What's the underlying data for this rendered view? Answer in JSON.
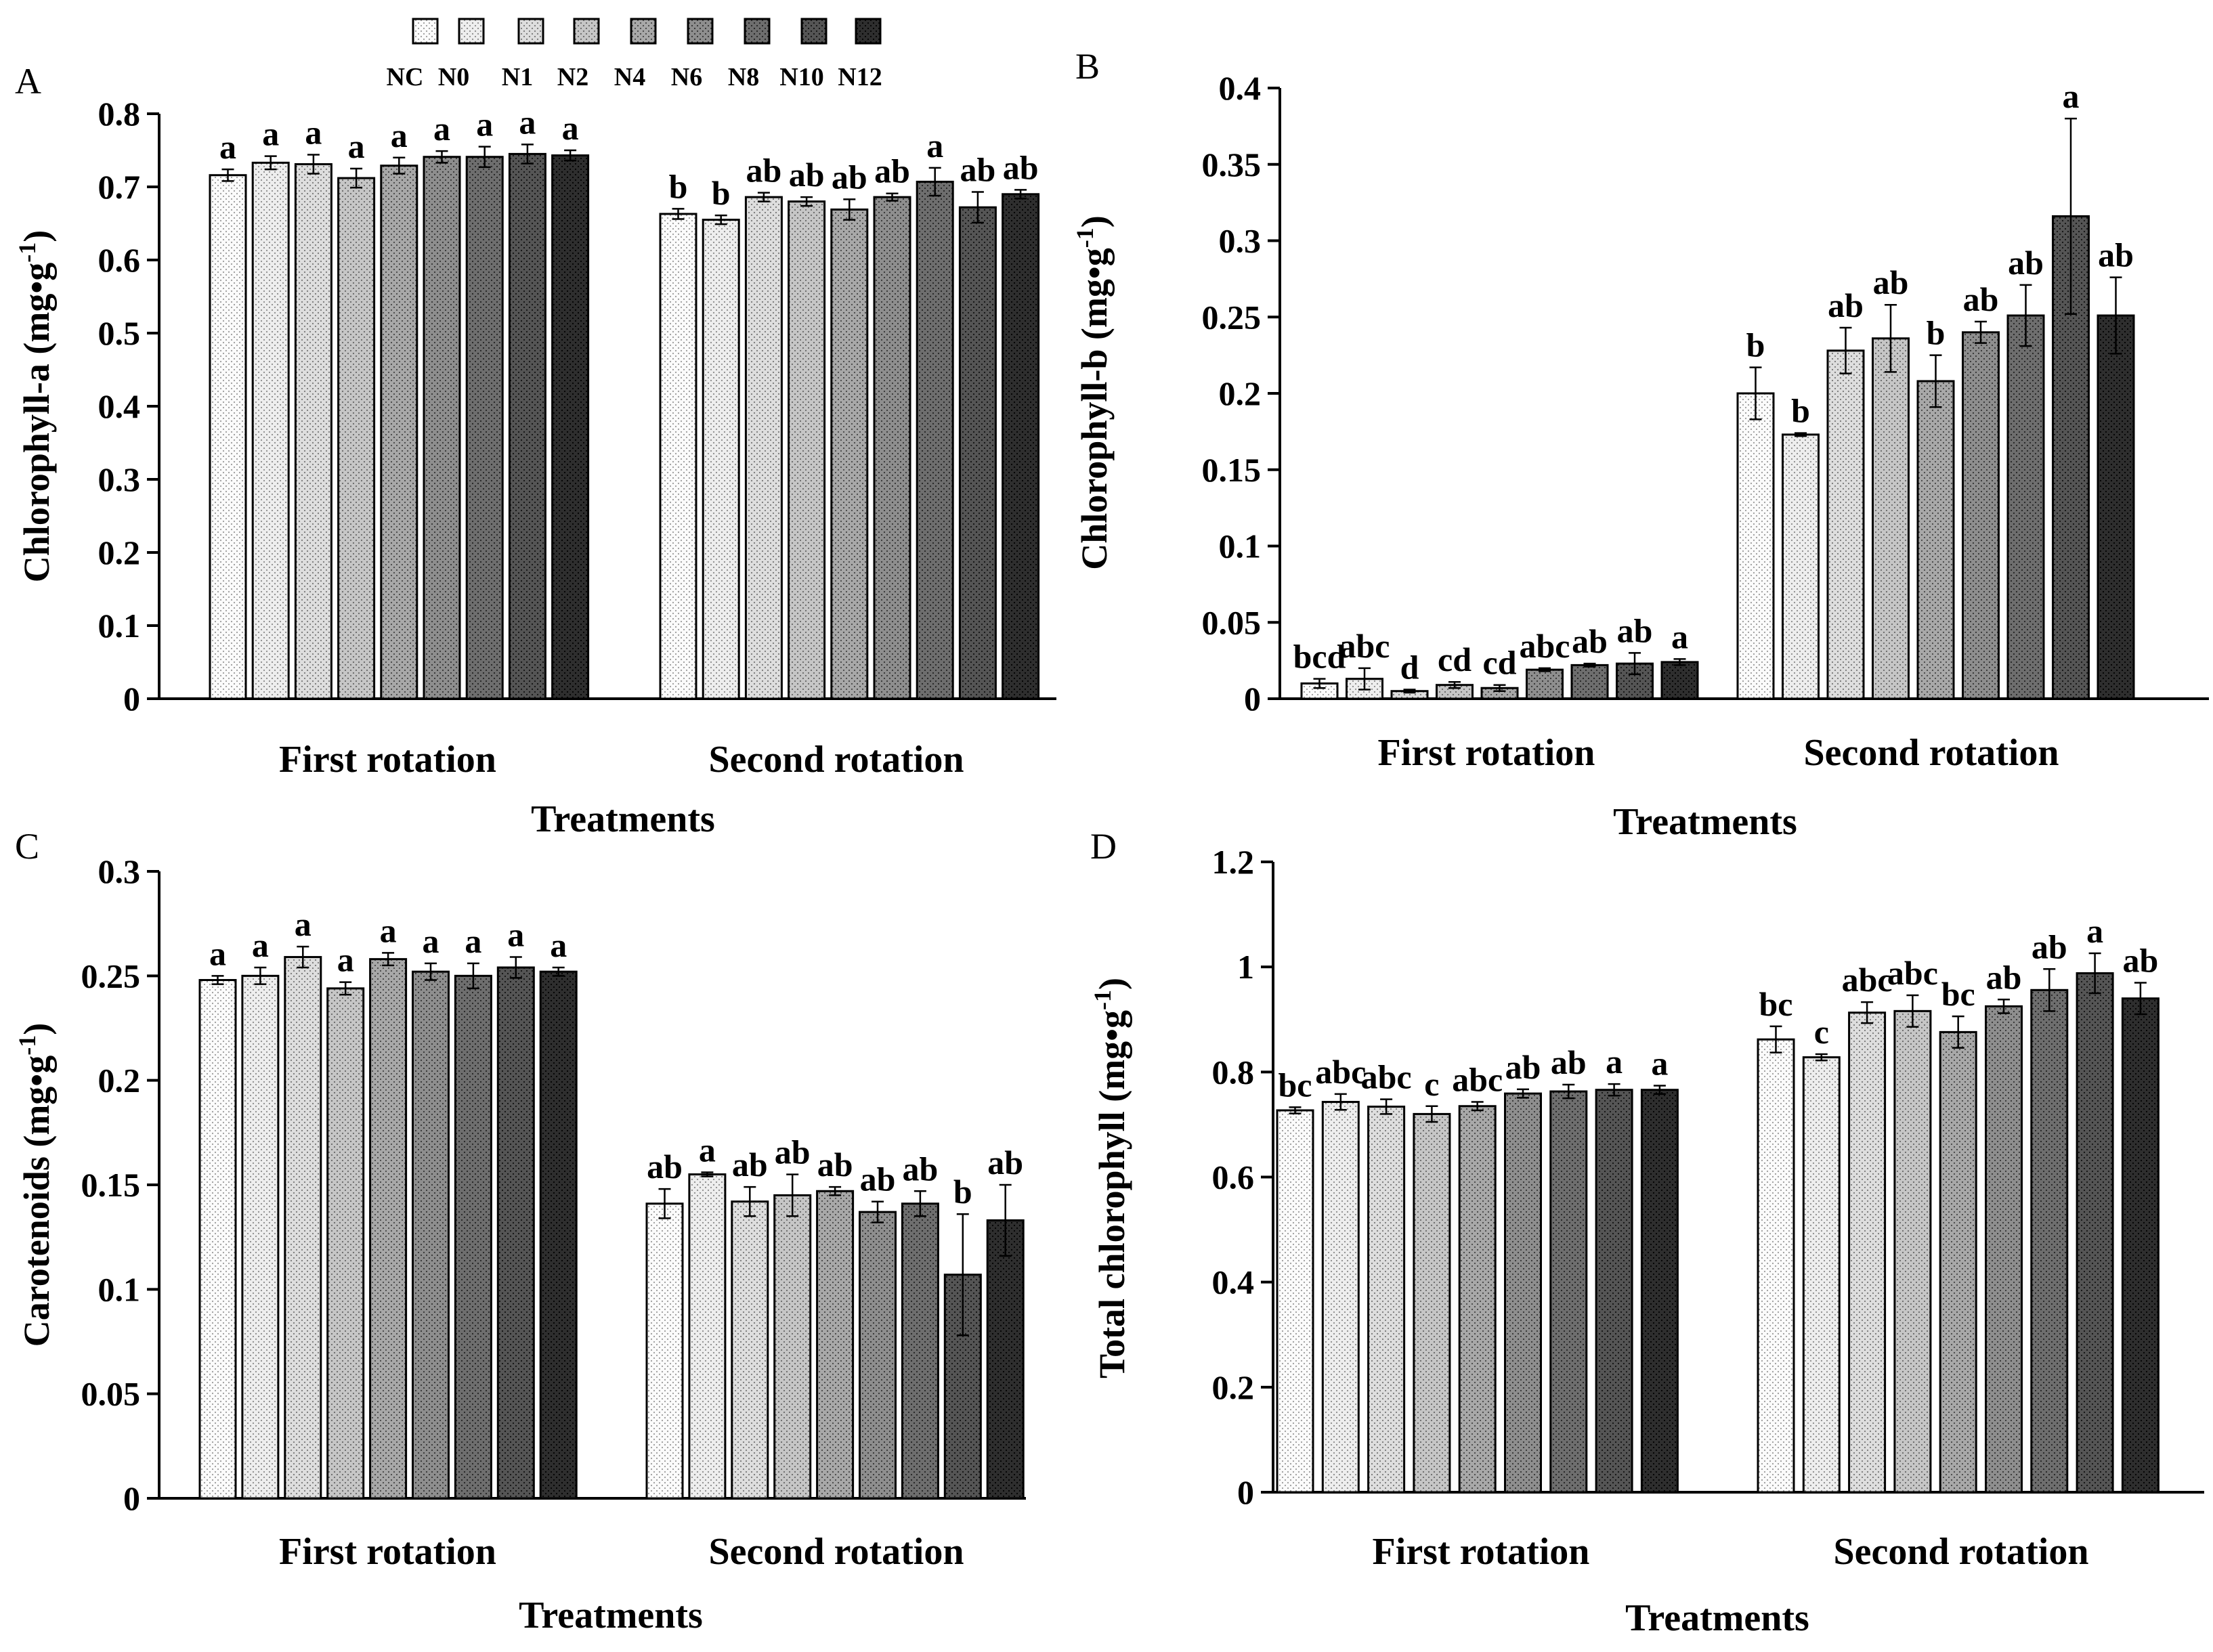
{
  "legend": {
    "treatments": [
      "NC",
      "N0",
      "N1",
      "N2",
      "N4",
      "N6",
      "N8",
      "N10",
      "N12"
    ],
    "colors": [
      "#fbfbfb",
      "#eeeeee",
      "#dedede",
      "#c6c6c6",
      "#a8a8a8",
      "#8e8e8e",
      "#6e6e6e",
      "#555555",
      "#2e2e2e"
    ]
  },
  "chart_data": [
    {
      "panel": "A",
      "type": "bar",
      "ylabel_main": "Chlorophyll-a (mg•g",
      "ylabel_sup": "-1",
      "ylabel_end": ")",
      "xlabel": "Treatments",
      "categories": [
        "First rotation",
        "Second rotation"
      ],
      "ylim": [
        0,
        0.8
      ],
      "yticks": [
        0,
        0.1,
        0.2,
        0.3,
        0.4,
        0.5,
        0.6,
        0.7,
        0.8
      ],
      "ytick_labels": [
        "0",
        "0.1",
        "0.2",
        "0.3",
        "0.4",
        "0.5",
        "0.6",
        "0.7",
        "0.8"
      ],
      "series": [
        {
          "name": "NC",
          "values": [
            0.716,
            0.663
          ],
          "errors": [
            0.008,
            0.007
          ],
          "letters": [
            "a",
            "b"
          ]
        },
        {
          "name": "N0",
          "values": [
            0.733,
            0.655
          ],
          "errors": [
            0.009,
            0.006
          ],
          "letters": [
            "a",
            "b"
          ]
        },
        {
          "name": "N1",
          "values": [
            0.731,
            0.686
          ],
          "errors": [
            0.013,
            0.006
          ],
          "letters": [
            "a",
            "ab"
          ]
        },
        {
          "name": "N2",
          "values": [
            0.712,
            0.68
          ],
          "errors": [
            0.013,
            0.006
          ],
          "letters": [
            "a",
            "ab"
          ]
        },
        {
          "name": "N4",
          "values": [
            0.729,
            0.669
          ],
          "errors": [
            0.011,
            0.014
          ],
          "letters": [
            "a",
            "ab"
          ]
        },
        {
          "name": "N6",
          "values": [
            0.741,
            0.686
          ],
          "errors": [
            0.008,
            0.005
          ],
          "letters": [
            "a",
            "ab"
          ]
        },
        {
          "name": "N8",
          "values": [
            0.741,
            0.707
          ],
          "errors": [
            0.014,
            0.019
          ],
          "letters": [
            "a",
            "a"
          ]
        },
        {
          "name": "N10",
          "values": [
            0.745,
            0.672
          ],
          "errors": [
            0.013,
            0.021
          ],
          "letters": [
            "a",
            "ab"
          ]
        },
        {
          "name": "N12",
          "values": [
            0.743,
            0.69
          ],
          "errors": [
            0.007,
            0.006
          ],
          "letters": [
            "a",
            "ab"
          ]
        }
      ]
    },
    {
      "panel": "B",
      "type": "bar",
      "ylabel_main": "Chlorophyll-b (mg•g",
      "ylabel_sup": "-1",
      "ylabel_end": ")",
      "xlabel": "Treatments",
      "categories": [
        "First rotation",
        "Second rotation"
      ],
      "ylim": [
        0,
        0.4
      ],
      "yticks": [
        0,
        0.05,
        0.1,
        0.15,
        0.2,
        0.25,
        0.3,
        0.35,
        0.4
      ],
      "ytick_labels": [
        "0",
        "0.05",
        "0.1",
        "0.15",
        "0.2",
        "0.25",
        "0.3",
        "0.35",
        "0.4"
      ],
      "series": [
        {
          "name": "NC",
          "values": [
            0.01,
            0.2
          ],
          "errors": [
            0.003,
            0.017
          ],
          "letters": [
            "bcd",
            "b"
          ]
        },
        {
          "name": "N0",
          "values": [
            0.013,
            0.173
          ],
          "errors": [
            0.007,
            0.001
          ],
          "letters": [
            "abc",
            "b"
          ]
        },
        {
          "name": "N1",
          "values": [
            0.005,
            0.228
          ],
          "errors": [
            0.001,
            0.015
          ],
          "letters": [
            "d",
            "ab"
          ]
        },
        {
          "name": "N2",
          "values": [
            0.009,
            0.236
          ],
          "errors": [
            0.002,
            0.022
          ],
          "letters": [
            "cd",
            "ab"
          ]
        },
        {
          "name": "N4",
          "values": [
            0.007,
            0.208
          ],
          "errors": [
            0.002,
            0.017
          ],
          "letters": [
            "cd",
            "b"
          ]
        },
        {
          "name": "N6",
          "values": [
            0.019,
            0.24
          ],
          "errors": [
            0.001,
            0.007
          ],
          "letters": [
            "abc",
            "ab"
          ]
        },
        {
          "name": "N8",
          "values": [
            0.022,
            0.251
          ],
          "errors": [
            0.001,
            0.02
          ],
          "letters": [
            "ab",
            "ab"
          ]
        },
        {
          "name": "N10",
          "values": [
            0.023,
            0.316
          ],
          "errors": [
            0.007,
            0.064
          ],
          "letters": [
            "ab",
            "a"
          ]
        },
        {
          "name": "N12",
          "values": [
            0.024,
            0.251
          ],
          "errors": [
            0.002,
            0.025
          ],
          "letters": [
            "a",
            "ab"
          ]
        }
      ]
    },
    {
      "panel": "C",
      "type": "bar",
      "ylabel_main": "Carotenoids (mg•g",
      "ylabel_sup": "-1",
      "ylabel_end": ")",
      "xlabel": "Treatments",
      "categories": [
        "First rotation",
        "Second rotation"
      ],
      "ylim": [
        0,
        0.3
      ],
      "yticks": [
        0,
        0.05,
        0.1,
        0.15,
        0.2,
        0.25,
        0.3
      ],
      "ytick_labels": [
        "0",
        "0.05",
        "0.1",
        "0.15",
        "0.2",
        "0.25",
        "0.3"
      ],
      "series": [
        {
          "name": "NC",
          "values": [
            0.248,
            0.141
          ],
          "errors": [
            0.002,
            0.007
          ],
          "letters": [
            "a",
            "ab"
          ]
        },
        {
          "name": "N0",
          "values": [
            0.25,
            0.155
          ],
          "errors": [
            0.004,
            0.001
          ],
          "letters": [
            "a",
            "a"
          ]
        },
        {
          "name": "N1",
          "values": [
            0.259,
            0.142
          ],
          "errors": [
            0.005,
            0.007
          ],
          "letters": [
            "a",
            "ab"
          ]
        },
        {
          "name": "N2",
          "values": [
            0.244,
            0.145
          ],
          "errors": [
            0.003,
            0.01
          ],
          "letters": [
            "a",
            "ab"
          ]
        },
        {
          "name": "N4",
          "values": [
            0.258,
            0.147
          ],
          "errors": [
            0.003,
            0.002
          ],
          "letters": [
            "a",
            "ab"
          ]
        },
        {
          "name": "N6",
          "values": [
            0.252,
            0.137
          ],
          "errors": [
            0.004,
            0.005
          ],
          "letters": [
            "a",
            "ab"
          ]
        },
        {
          "name": "N8",
          "values": [
            0.25,
            0.141
          ],
          "errors": [
            0.006,
            0.006
          ],
          "letters": [
            "a",
            "ab"
          ]
        },
        {
          "name": "N10",
          "values": [
            0.254,
            0.107
          ],
          "errors": [
            0.005,
            0.029
          ],
          "letters": [
            "a",
            "b"
          ]
        },
        {
          "name": "N12",
          "values": [
            0.252,
            0.133
          ],
          "errors": [
            0.002,
            0.017
          ],
          "letters": [
            "a",
            "ab"
          ]
        }
      ]
    },
    {
      "panel": "D",
      "type": "bar",
      "ylabel_main": "Total chlorophyll (mg•g",
      "ylabel_sup": "-1",
      "ylabel_end": ")",
      "xlabel": "Treatments",
      "categories": [
        "First rotation",
        "Second rotation"
      ],
      "ylim": [
        0,
        1.2
      ],
      "yticks": [
        0,
        0.2,
        0.4,
        0.6,
        0.8,
        1.0,
        1.2
      ],
      "ytick_labels": [
        "0",
        "0.2",
        "0.4",
        "0.6",
        "0.8",
        "1",
        "1.2"
      ],
      "series": [
        {
          "name": "NC",
          "values": [
            0.727,
            0.862
          ],
          "errors": [
            0.006,
            0.025
          ],
          "letters": [
            "bc",
            "bc"
          ]
        },
        {
          "name": "N0",
          "values": [
            0.743,
            0.828
          ],
          "errors": [
            0.015,
            0.006
          ],
          "letters": [
            "abc",
            "c"
          ]
        },
        {
          "name": "N1",
          "values": [
            0.734,
            0.913
          ],
          "errors": [
            0.014,
            0.02
          ],
          "letters": [
            "abc",
            "abc"
          ]
        },
        {
          "name": "N2",
          "values": [
            0.72,
            0.916
          ],
          "errors": [
            0.015,
            0.03
          ],
          "letters": [
            "c",
            "abc"
          ]
        },
        {
          "name": "N4",
          "values": [
            0.735,
            0.876
          ],
          "errors": [
            0.008,
            0.03
          ],
          "letters": [
            "abc",
            "bc"
          ]
        },
        {
          "name": "N6",
          "values": [
            0.759,
            0.925
          ],
          "errors": [
            0.008,
            0.013
          ],
          "letters": [
            "ab",
            "ab"
          ]
        },
        {
          "name": "N8",
          "values": [
            0.763,
            0.956
          ],
          "errors": [
            0.013,
            0.04
          ],
          "letters": [
            "ab",
            "ab"
          ]
        },
        {
          "name": "N10",
          "values": [
            0.766,
            0.988
          ],
          "errors": [
            0.011,
            0.038
          ],
          "letters": [
            "a",
            "a"
          ]
        },
        {
          "name": "N12",
          "values": [
            0.766,
            0.94
          ],
          "errors": [
            0.008,
            0.03
          ],
          "letters": [
            "a",
            "ab"
          ]
        }
      ]
    }
  ]
}
